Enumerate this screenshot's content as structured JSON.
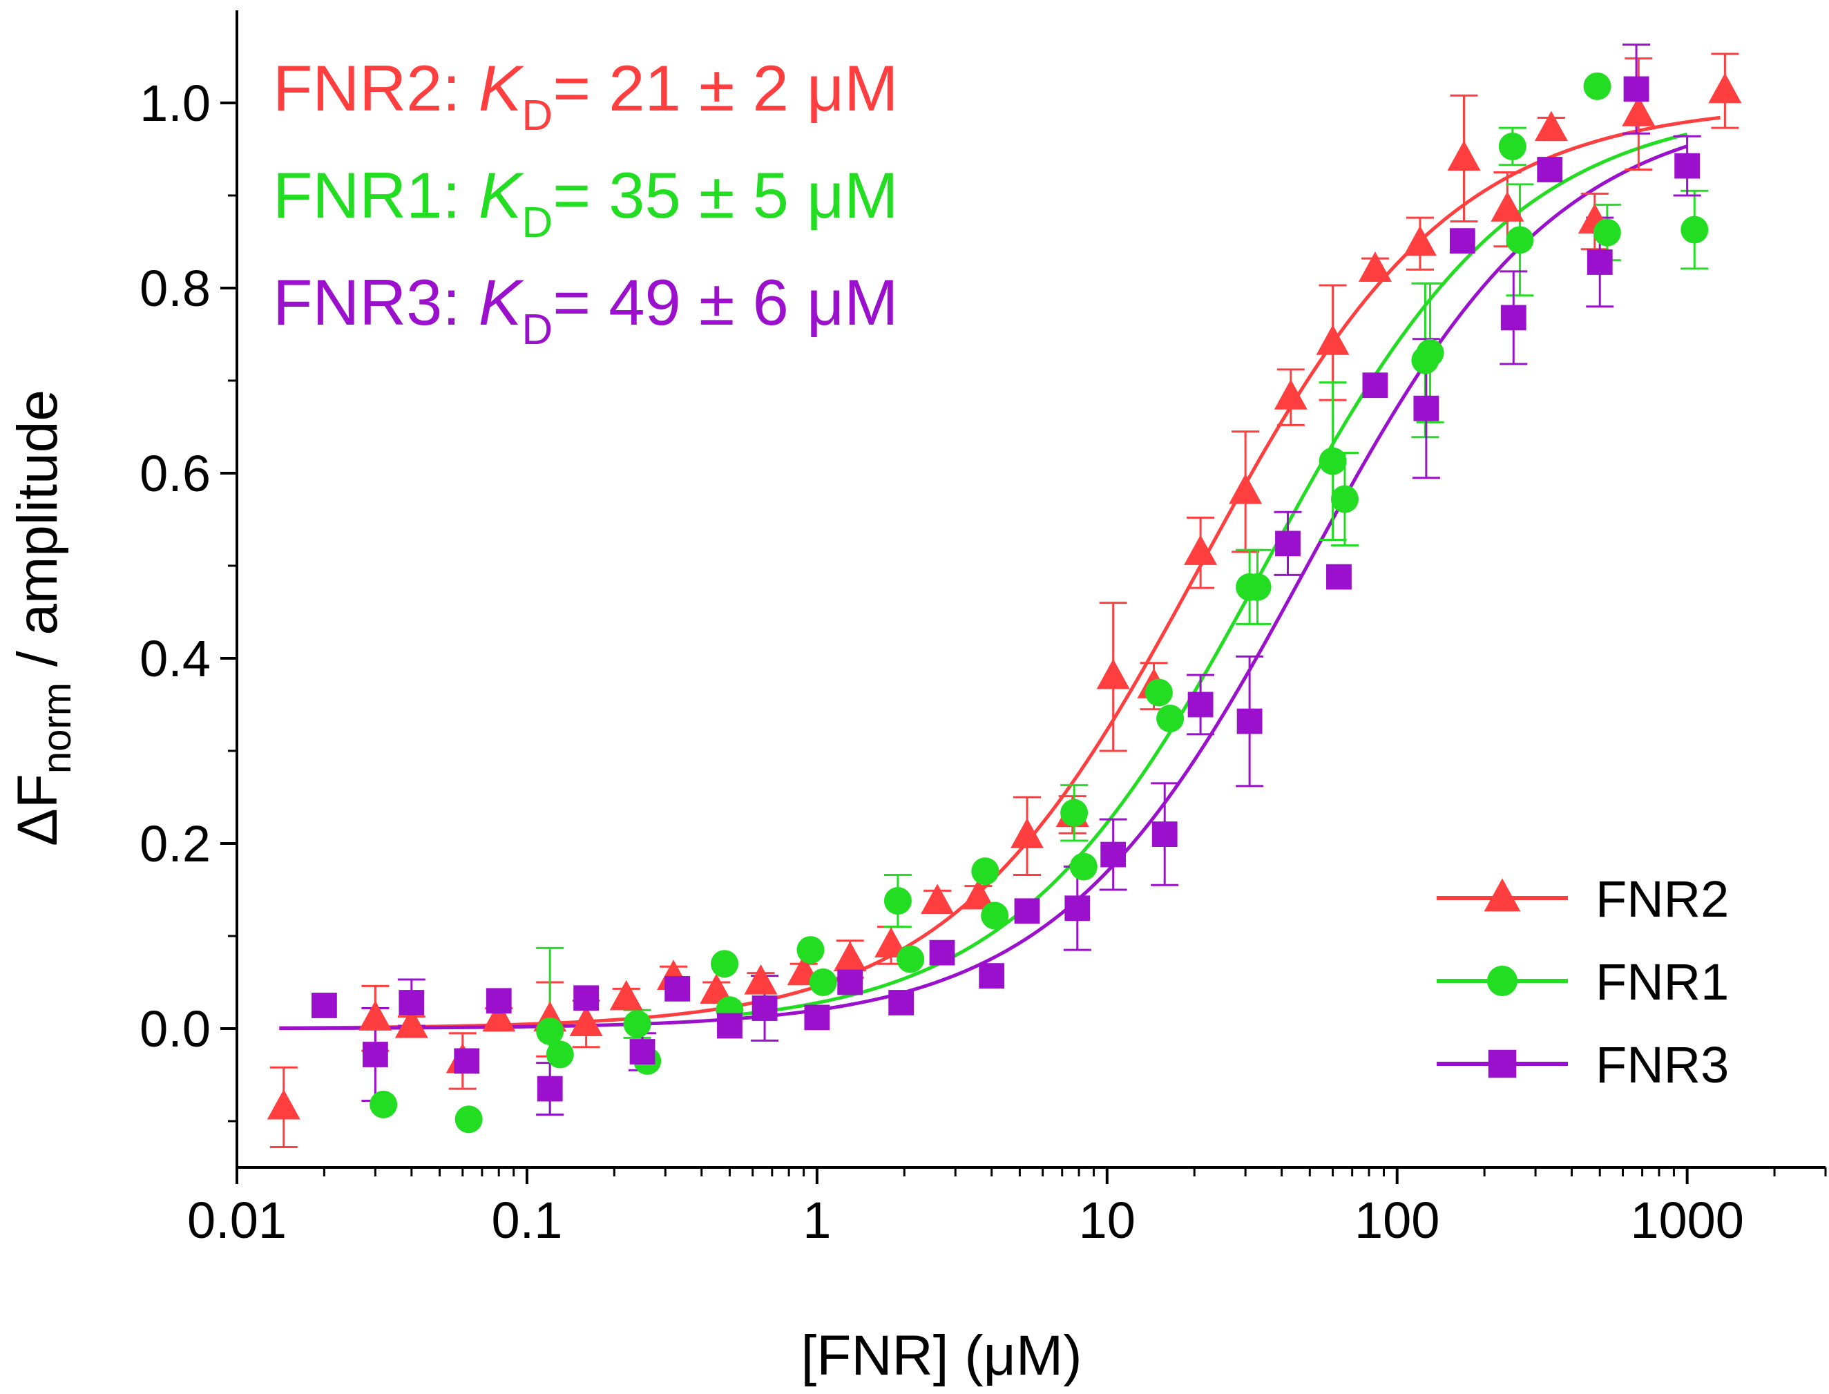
{
  "chart_data": {
    "type": "scatter",
    "xscale": "log",
    "xlim": [
      0.01,
      3000
    ],
    "ylim": [
      -0.15,
      1.1
    ],
    "xlabel": "[FNR] (μM)",
    "ylabel_main": "ΔF",
    "ylabel_sub": "norm",
    "ylabel_rest": " / amplitude",
    "x_ticks": [
      {
        "value": 0.01,
        "label": "0.01"
      },
      {
        "value": 0.1,
        "label": "0.1"
      },
      {
        "value": 1,
        "label": "1"
      },
      {
        "value": 10,
        "label": "10"
      },
      {
        "value": 100,
        "label": "100"
      },
      {
        "value": 1000,
        "label": "1000"
      }
    ],
    "y_ticks": [
      {
        "value": 0.0,
        "label": "0.0"
      },
      {
        "value": 0.2,
        "label": "0.2"
      },
      {
        "value": 0.4,
        "label": "0.4"
      },
      {
        "value": 0.6,
        "label": "0.6"
      },
      {
        "value": 0.8,
        "label": "0.8"
      },
      {
        "value": 1.0,
        "label": "1.0"
      }
    ],
    "legend_position": "bottom-right",
    "grid": false,
    "annotations": [
      {
        "series": "FNR2",
        "prefix": "FNR2: ",
        "k": "K",
        "sub": "D",
        "rest": "= 21 ± 2 μM",
        "color": "#ff3f3f"
      },
      {
        "series": "FNR1",
        "prefix": "FNR1: ",
        "k": "K",
        "sub": "D",
        "rest": "= 35 ± 5 μM",
        "color": "#22dd22"
      },
      {
        "series": "FNR3",
        "prefix": "FNR3: ",
        "k": "K",
        "sub": "D",
        "rest": "= 49 ± 6 μM",
        "color": "#9a10cc"
      }
    ],
    "series": [
      {
        "name": "FNR2",
        "color": "#ff3f3f",
        "marker": "triangle",
        "kd": 21,
        "fit_range": [
          0.014,
          1300
        ],
        "points": [
          [
            0.0145,
            -0.085,
            0.043
          ],
          [
            0.03,
            0.011,
            0.035
          ],
          [
            0.04,
            0.003,
            0.01
          ],
          [
            0.06,
            -0.035,
            0.03
          ],
          [
            0.08,
            0.01,
            0.012
          ],
          [
            0.12,
            0.01,
            0.04
          ],
          [
            0.16,
            0.005,
            0.025
          ],
          [
            0.22,
            0.033,
            0.01
          ],
          [
            0.32,
            0.055,
            0.012
          ],
          [
            0.45,
            0.04,
            0.01
          ],
          [
            0.64,
            0.05,
            0.01
          ],
          [
            0.9,
            0.06,
            0.01
          ],
          [
            1.3,
            0.075,
            0.02
          ],
          [
            1.8,
            0.09,
            0.02
          ],
          [
            2.6,
            0.137,
            0.012
          ],
          [
            3.6,
            0.142,
            0.012
          ],
          [
            5.3,
            0.208,
            0.042
          ],
          [
            7.6,
            0.231,
            0.02
          ],
          [
            10.5,
            0.38,
            0.08
          ],
          [
            14.5,
            0.37,
            0.025
          ],
          [
            21,
            0.514,
            0.038
          ],
          [
            30,
            0.58,
            0.065
          ],
          [
            43,
            0.682,
            0.03
          ],
          [
            60,
            0.741,
            0.062
          ],
          [
            84,
            0.82,
            0.012
          ],
          [
            120,
            0.848,
            0.028
          ],
          [
            170,
            0.94,
            0.068
          ],
          [
            240,
            0.885,
            0.04
          ],
          [
            340,
            0.972,
            0.012
          ],
          [
            480,
            0.872,
            0.03
          ],
          [
            680,
            0.988,
            0.06
          ],
          [
            1350,
            1.013,
            0.04
          ]
        ]
      },
      {
        "name": "FNR1",
        "color": "#22dd22",
        "marker": "circle",
        "kd": 35,
        "fit_range": [
          0.5,
          1000
        ],
        "points": [
          [
            0.032,
            -0.082,
            0.0
          ],
          [
            0.063,
            -0.098,
            0.0
          ],
          [
            0.12,
            -0.003,
            0.09
          ],
          [
            0.13,
            -0.028,
            0.0
          ],
          [
            0.24,
            0.005,
            0.015
          ],
          [
            0.26,
            -0.035,
            0.0
          ],
          [
            0.48,
            0.07,
            0.0
          ],
          [
            0.5,
            0.02,
            0.0
          ],
          [
            0.95,
            0.085,
            0.0
          ],
          [
            1.05,
            0.05,
            0.0
          ],
          [
            1.9,
            0.138,
            0.028
          ],
          [
            2.1,
            0.075,
            0.0
          ],
          [
            3.8,
            0.17,
            0.0
          ],
          [
            4.1,
            0.122,
            0.0
          ],
          [
            7.7,
            0.233,
            0.03
          ],
          [
            8.3,
            0.175,
            0.0
          ],
          [
            15.1,
            0.363,
            0.0
          ],
          [
            16.5,
            0.335,
            0.0
          ],
          [
            31,
            0.477,
            0.04
          ],
          [
            33,
            0.477,
            0.04
          ],
          [
            60,
            0.613,
            0.085
          ],
          [
            66,
            0.572,
            0.05
          ],
          [
            125,
            0.722,
            0.083
          ],
          [
            130,
            0.73,
            0.075
          ],
          [
            250,
            0.953,
            0.02
          ],
          [
            265,
            0.852,
            0.06
          ],
          [
            490,
            1.018,
            0.0
          ],
          [
            530,
            0.86,
            0.03
          ],
          [
            1060,
            0.863,
            0.042
          ]
        ]
      },
      {
        "name": "FNR3",
        "color": "#9a10cc",
        "marker": "square",
        "kd": 49,
        "fit_range": [
          0.014,
          1000
        ],
        "points": [
          [
            0.02,
            0.025,
            0.0
          ],
          [
            0.03,
            -0.028,
            0.05
          ],
          [
            0.04,
            0.028,
            0.025
          ],
          [
            0.062,
            -0.035,
            0.0
          ],
          [
            0.08,
            0.03,
            0.0
          ],
          [
            0.12,
            -0.065,
            0.028
          ],
          [
            0.16,
            0.033,
            0.0
          ],
          [
            0.25,
            -0.025,
            0.02
          ],
          [
            0.33,
            0.043,
            0.0
          ],
          [
            0.5,
            0.003,
            0.0
          ],
          [
            0.66,
            0.022,
            0.035
          ],
          [
            1.0,
            0.012,
            0.0
          ],
          [
            1.3,
            0.05,
            0.0
          ],
          [
            1.95,
            0.028,
            0.0
          ],
          [
            2.7,
            0.082,
            0.0
          ],
          [
            4.0,
            0.057,
            0.0
          ],
          [
            5.3,
            0.127,
            0.0
          ],
          [
            7.9,
            0.13,
            0.045
          ],
          [
            10.5,
            0.188,
            0.038
          ],
          [
            15.8,
            0.21,
            0.055
          ],
          [
            21,
            0.35,
            0.032
          ],
          [
            31,
            0.332,
            0.07
          ],
          [
            42,
            0.524,
            0.034
          ],
          [
            63,
            0.488,
            0.0
          ],
          [
            84,
            0.695,
            0.0
          ],
          [
            126,
            0.67,
            0.075
          ],
          [
            168,
            0.851,
            0.0
          ],
          [
            252,
            0.768,
            0.05
          ],
          [
            336,
            0.928,
            0.0
          ],
          [
            500,
            0.828,
            0.048
          ],
          [
            668,
            1.015,
            0.048
          ],
          [
            1000,
            0.932,
            0.032
          ]
        ]
      }
    ]
  }
}
